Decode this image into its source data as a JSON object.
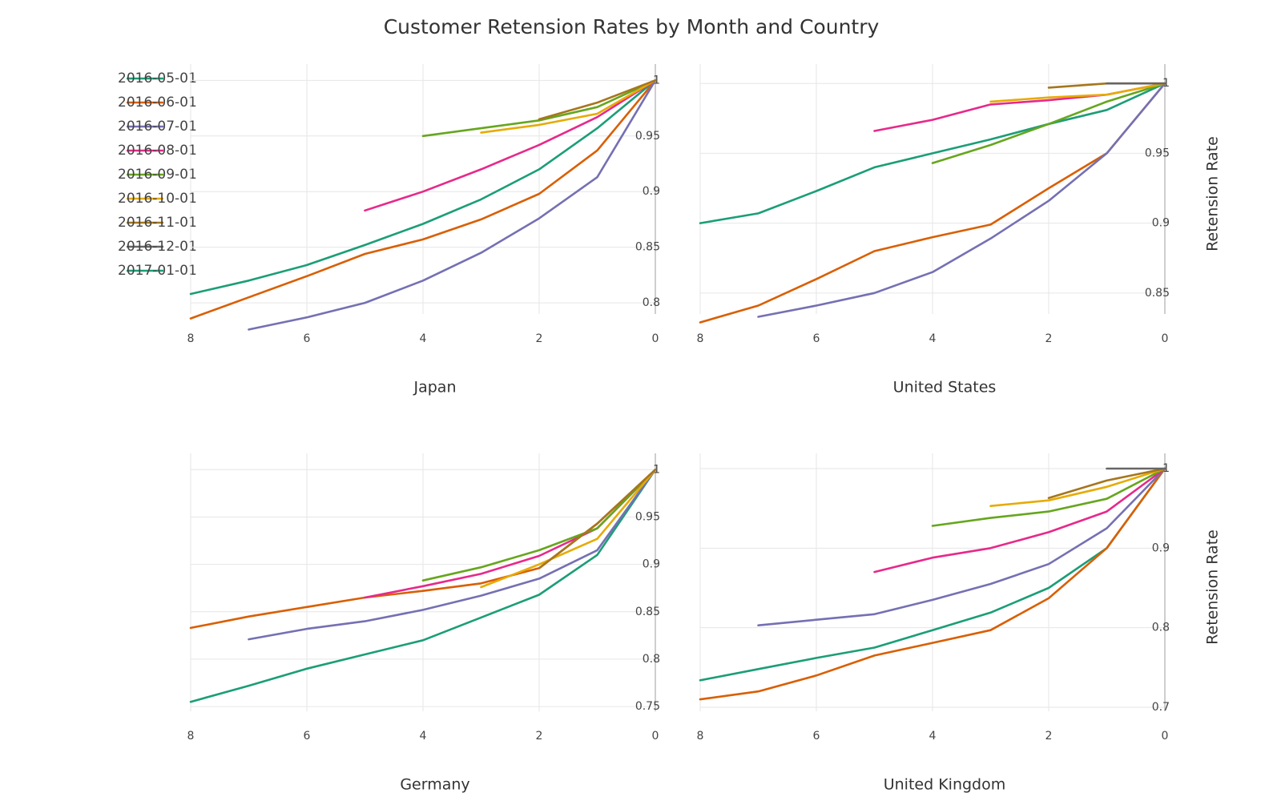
{
  "chart_data": {
    "type": "line",
    "title": "Customer Retension Rates by Month and Country",
    "mirrored_horizontally": true,
    "legend": {
      "position": "top-left",
      "entries": [
        "2016-05-01",
        "2016-06-01",
        "2016-07-01",
        "2016-08-01",
        "2016-09-01",
        "2016-10-01",
        "2016-11-01",
        "2016-12-01",
        "2017-01-01"
      ]
    },
    "colors": [
      "#1b9e77",
      "#d95f02",
      "#7570b3",
      "#e7298a",
      "#66a61e",
      "#e6ab02",
      "#a6761d",
      "#666666",
      "#1b9e77"
    ],
    "grid": true,
    "panels": [
      {
        "country": "United States",
        "xlabel": "United States",
        "ylabel": "Retension Rate",
        "xlim": [
          0,
          8
        ],
        "ylim": [
          0.835,
          1.007
        ],
        "xticks": [
          0,
          2,
          4,
          6,
          8
        ],
        "yticks": [
          0.85,
          0.9,
          0.95,
          1
        ],
        "ytick_labels": [
          "0.85",
          "0.9",
          "0.95",
          "1"
        ],
        "series": [
          {
            "name": "2016-05-01",
            "x": [
              0,
              1,
              2,
              3,
              4,
              5,
              6,
              7,
              8
            ],
            "y": [
              1,
              0.981,
              0.971,
              0.96,
              0.95,
              0.94,
              0.923,
              0.907,
              0.9
            ]
          },
          {
            "name": "2016-06-01",
            "x": [
              0,
              1,
              2,
              3,
              4,
              5,
              6,
              7,
              8
            ],
            "y": [
              1,
              0.95,
              0.925,
              0.899,
              0.89,
              0.88,
              0.86,
              0.841,
              0.829
            ]
          },
          {
            "name": "2016-07-01",
            "x": [
              0,
              1,
              2,
              3,
              4,
              5,
              6,
              7
            ],
            "y": [
              1,
              0.95,
              0.916,
              0.889,
              0.865,
              0.85,
              0.841,
              0.833
            ]
          },
          {
            "name": "2016-08-01",
            "x": [
              0,
              1,
              2,
              3,
              4,
              5
            ],
            "y": [
              1,
              0.992,
              0.988,
              0.985,
              0.974,
              0.966
            ]
          },
          {
            "name": "2016-09-01",
            "x": [
              0,
              1,
              2,
              3,
              4
            ],
            "y": [
              1,
              0.987,
              0.971,
              0.956,
              0.943
            ]
          },
          {
            "name": "2016-10-01",
            "x": [
              0,
              1,
              2,
              3
            ],
            "y": [
              1,
              0.992,
              0.99,
              0.987
            ]
          },
          {
            "name": "2016-11-01",
            "x": [
              0,
              1,
              2
            ],
            "y": [
              1,
              1,
              0.997
            ]
          },
          {
            "name": "2016-12-01",
            "x": [
              0,
              1
            ],
            "y": [
              1,
              1
            ]
          }
        ]
      },
      {
        "country": "Japan",
        "xlabel": "Japan",
        "ylabel": "",
        "xlim": [
          0,
          8
        ],
        "ylim": [
          0.79,
          1.006
        ],
        "xticks": [
          0,
          2,
          4,
          6,
          8
        ],
        "yticks": [
          0.8,
          0.85,
          0.9,
          0.95,
          1
        ],
        "ytick_labels": [
          "0.8",
          "0.85",
          "0.9",
          "0.95",
          "1"
        ],
        "series": [
          {
            "name": "2016-05-01",
            "x": [
              0,
              1,
              2,
              3,
              4,
              5,
              6,
              7,
              8
            ],
            "y": [
              1,
              0.957,
              0.92,
              0.893,
              0.871,
              0.852,
              0.834,
              0.82,
              0.808
            ]
          },
          {
            "name": "2016-06-01",
            "x": [
              0,
              1,
              2,
              3,
              4,
              5,
              6,
              7,
              8
            ],
            "y": [
              1,
              0.937,
              0.898,
              0.875,
              0.857,
              0.844,
              0.824,
              0.805,
              0.786
            ]
          },
          {
            "name": "2016-07-01",
            "x": [
              0,
              1,
              2,
              3,
              4,
              5,
              6,
              7
            ],
            "y": [
              1,
              0.913,
              0.876,
              0.845,
              0.82,
              0.8,
              0.787,
              0.776
            ]
          },
          {
            "name": "2016-08-01",
            "x": [
              0,
              1,
              2,
              3,
              4,
              5
            ],
            "y": [
              1,
              0.967,
              0.942,
              0.92,
              0.9,
              0.883
            ]
          },
          {
            "name": "2016-09-01",
            "x": [
              0,
              1,
              2,
              3,
              4
            ],
            "y": [
              1,
              0.976,
              0.964,
              0.957,
              0.95
            ]
          },
          {
            "name": "2016-10-01",
            "x": [
              0,
              1,
              2,
              3
            ],
            "y": [
              1,
              0.97,
              0.96,
              0.953
            ]
          },
          {
            "name": "2016-11-01",
            "x": [
              0,
              1,
              2
            ],
            "y": [
              1,
              0.98,
              0.965
            ]
          }
        ]
      },
      {
        "country": "United Kingdom",
        "xlabel": "United Kingdom",
        "ylabel": "Retension Rate",
        "xlim": [
          0,
          8
        ],
        "ylim": [
          0.695,
          1.007
        ],
        "xticks": [
          0,
          2,
          4,
          6,
          8
        ],
        "yticks": [
          0.7,
          0.8,
          0.9,
          1
        ],
        "ytick_labels": [
          "0.7",
          "0.8",
          "0.9",
          "1"
        ],
        "series": [
          {
            "name": "2016-05-01",
            "x": [
              0,
              1,
              2,
              3,
              4,
              5,
              6,
              7,
              8
            ],
            "y": [
              1,
              0.9,
              0.85,
              0.819,
              0.797,
              0.775,
              0.762,
              0.748,
              0.734
            ]
          },
          {
            "name": "2016-06-01",
            "x": [
              0,
              1,
              2,
              3,
              4,
              5,
              6,
              7,
              8
            ],
            "y": [
              1,
              0.9,
              0.837,
              0.797,
              0.781,
              0.765,
              0.74,
              0.72,
              0.71
            ]
          },
          {
            "name": "2016-07-01",
            "x": [
              0,
              1,
              2,
              3,
              4,
              5,
              6,
              7
            ],
            "y": [
              1,
              0.925,
              0.88,
              0.855,
              0.835,
              0.817,
              0.81,
              0.803
            ]
          },
          {
            "name": "2016-08-01",
            "x": [
              0,
              1,
              2,
              3,
              4,
              5
            ],
            "y": [
              1,
              0.946,
              0.92,
              0.9,
              0.888,
              0.87
            ]
          },
          {
            "name": "2016-09-01",
            "x": [
              0,
              1,
              2,
              3,
              4
            ],
            "y": [
              1,
              0.962,
              0.946,
              0.938,
              0.928
            ]
          },
          {
            "name": "2016-10-01",
            "x": [
              0,
              1,
              2,
              3
            ],
            "y": [
              1,
              0.977,
              0.96,
              0.953
            ]
          },
          {
            "name": "2016-11-01",
            "x": [
              0,
              1,
              2
            ],
            "y": [
              1,
              0.985,
              0.963
            ]
          },
          {
            "name": "2016-12-01",
            "x": [
              0,
              1
            ],
            "y": [
              1,
              1
            ]
          }
        ]
      },
      {
        "country": "Germany",
        "xlabel": "Germany",
        "ylabel": "",
        "xlim": [
          0,
          8
        ],
        "ylim": [
          0.745,
          1.007
        ],
        "xticks": [
          0,
          2,
          4,
          6,
          8
        ],
        "yticks": [
          0.75,
          0.8,
          0.85,
          0.9,
          0.95,
          1
        ],
        "ytick_labels": [
          "0.75",
          "0.8",
          "0.85",
          "0.9",
          "0.95",
          "1"
        ],
        "series": [
          {
            "name": "2016-05-01",
            "x": [
              0,
              1,
              2,
              3,
              4,
              5,
              6,
              7,
              8
            ],
            "y": [
              1,
              0.91,
              0.868,
              0.844,
              0.82,
              0.805,
              0.79,
              0.772,
              0.755
            ]
          },
          {
            "name": "2016-06-01",
            "x": [
              0,
              1,
              2,
              3,
              4,
              5,
              6,
              7,
              8
            ],
            "y": [
              1,
              0.943,
              0.896,
              0.88,
              0.872,
              0.865,
              0.855,
              0.845,
              0.833
            ]
          },
          {
            "name": "2016-07-01",
            "x": [
              0,
              1,
              2,
              3,
              4,
              5,
              6,
              7
            ],
            "y": [
              1,
              0.915,
              0.885,
              0.867,
              0.852,
              0.84,
              0.832,
              0.821
            ]
          },
          {
            "name": "2016-08-01",
            "x": [
              0,
              1,
              2,
              3,
              4,
              5
            ],
            "y": [
              1,
              0.938,
              0.909,
              0.89,
              0.877,
              0.865
            ]
          },
          {
            "name": "2016-09-01",
            "x": [
              0,
              1,
              2,
              3,
              4
            ],
            "y": [
              1,
              0.938,
              0.915,
              0.897,
              0.883
            ]
          },
          {
            "name": "2016-10-01",
            "x": [
              0,
              1,
              2,
              3
            ],
            "y": [
              1,
              0.927,
              0.9,
              0.876
            ]
          },
          {
            "name": "2016-11-01",
            "x": [
              0,
              1,
              2
            ],
            "y": [
              1,
              0.943,
              0.896
            ]
          }
        ]
      }
    ]
  }
}
